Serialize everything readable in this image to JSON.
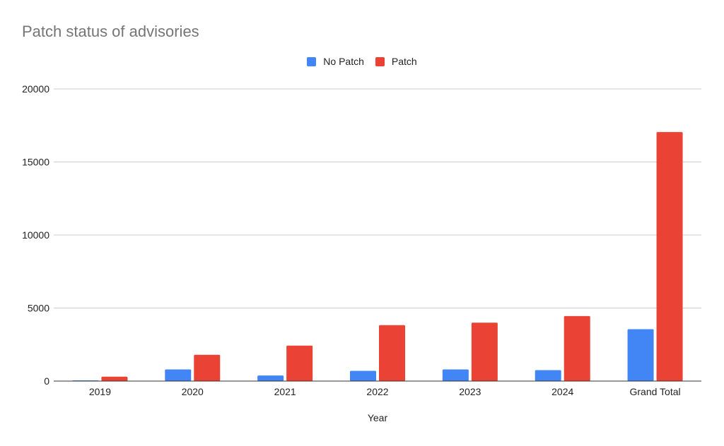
{
  "chart_data": {
    "type": "bar",
    "title": "Patch status of advisories",
    "xlabel": "Year",
    "ylabel": "",
    "categories": [
      "2019",
      "2020",
      "2021",
      "2022",
      "2023",
      "2024",
      "Grand Total"
    ],
    "series": [
      {
        "name": "No Patch",
        "color": "#4285f4",
        "values": [
          30,
          800,
          380,
          700,
          800,
          750,
          3550
        ]
      },
      {
        "name": "Patch",
        "color": "#ea4335",
        "values": [
          300,
          1800,
          2430,
          3830,
          4000,
          4450,
          17050
        ]
      }
    ],
    "ylim": [
      0,
      20000
    ],
    "yticks": [
      "0",
      "5000",
      "10000",
      "15000",
      "20000"
    ],
    "grid": true,
    "legend_position": "top-center"
  }
}
